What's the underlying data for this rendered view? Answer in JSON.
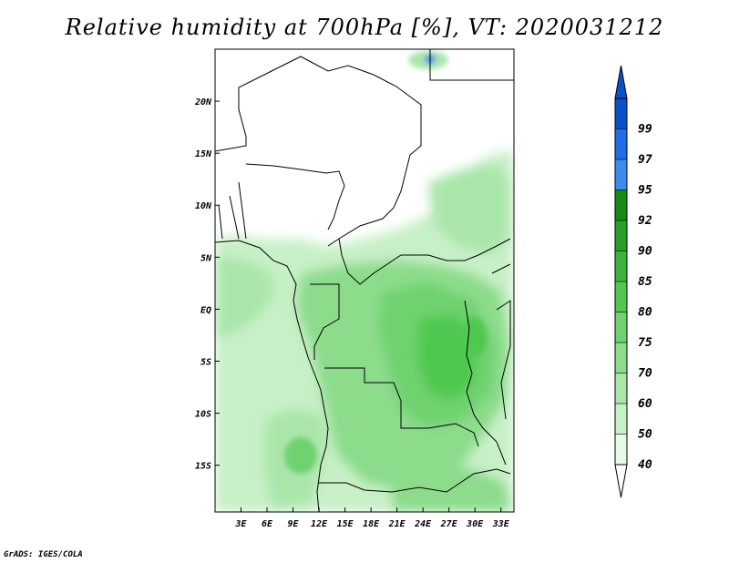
{
  "title": "Relative humidity at 700hPa [%], VT: 2020031212",
  "credit": "GrADS: IGES/COLA",
  "map": {
    "lon_range": [
      0,
      34.5
    ],
    "lat_range": [
      -19.5,
      25
    ],
    "lon_ticks": [
      {
        "value": 3,
        "label": "3E"
      },
      {
        "value": 6,
        "label": "6E"
      },
      {
        "value": 9,
        "label": "9E"
      },
      {
        "value": 12,
        "label": "12E"
      },
      {
        "value": 15,
        "label": "15E"
      },
      {
        "value": 18,
        "label": "18E"
      },
      {
        "value": 21,
        "label": "21E"
      },
      {
        "value": 24,
        "label": "24E"
      },
      {
        "value": 27,
        "label": "27E"
      },
      {
        "value": 30,
        "label": "30E"
      },
      {
        "value": 33,
        "label": "33E"
      }
    ],
    "lat_ticks": [
      {
        "value": 20,
        "label": "20N"
      },
      {
        "value": 15,
        "label": "15N"
      },
      {
        "value": 10,
        "label": "10N"
      },
      {
        "value": 5,
        "label": "5N"
      },
      {
        "value": 0,
        "label": "EQ"
      },
      {
        "value": -5,
        "label": "5S"
      },
      {
        "value": -10,
        "label": "10S"
      },
      {
        "value": -15,
        "label": "15S"
      }
    ]
  },
  "colorbar": {
    "levels": [
      {
        "label": "40",
        "color": "#e6fae6"
      },
      {
        "label": "50",
        "color": "#c8f0c8"
      },
      {
        "label": "60",
        "color": "#aae6aa"
      },
      {
        "label": "70",
        "color": "#8cdc8c"
      },
      {
        "label": "75",
        "color": "#6ed26e"
      },
      {
        "label": "80",
        "color": "#50c850"
      },
      {
        "label": "85",
        "color": "#3cb43c"
      },
      {
        "label": "90",
        "color": "#28a028"
      },
      {
        "label": "92",
        "color": "#148c14"
      },
      {
        "label": "95",
        "color": "#3c8cf0"
      },
      {
        "label": "97",
        "color": "#1e6ee6"
      },
      {
        "label": "99",
        "color": "#0a50c8"
      }
    ],
    "below_color": "#ffffff",
    "above_color": "#0a50c8"
  }
}
